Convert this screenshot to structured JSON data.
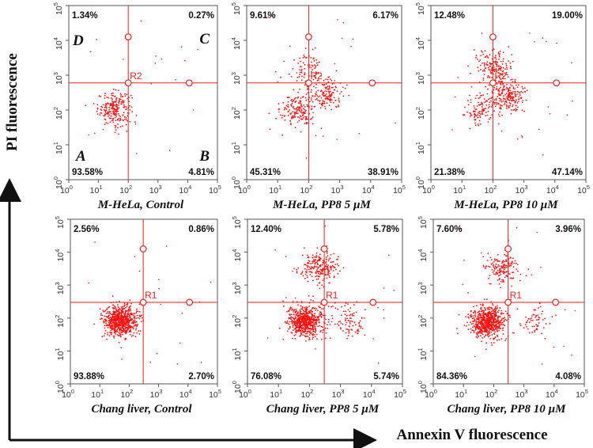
{
  "figure": {
    "y_axis_title": "PI fluorescence",
    "x_axis_title": "Annexin V fluorescence"
  },
  "colors": {
    "dots": "#ff1010",
    "gate": "#ff1a1a",
    "axis_arrow": "#111111"
  },
  "chart_data": [
    {
      "type": "scatter",
      "title": "M-HeLa, Control",
      "gate": "R2",
      "xlabel": "",
      "ylabel": "",
      "xscale": "log",
      "yscale": "log",
      "xlim": [
        1,
        100000
      ],
      "ylim": [
        1,
        100000
      ],
      "gate_x": 100,
      "gate_y": 600,
      "quadrant_percents": {
        "upper_left": "1.34%",
        "upper_right": "0.27%",
        "lower_left": "93.58%",
        "lower_right": "4.81%"
      },
      "quadrant_letters": {
        "upper_left": "D",
        "upper_right": "C",
        "lower_left": "A",
        "lower_right": "B"
      },
      "populations": [
        {
          "x": 35,
          "y": 110,
          "count": 230
        }
      ]
    },
    {
      "type": "scatter",
      "title": "M-HeLa, PP8 5 µM",
      "gate": "R2",
      "xlabel": "",
      "ylabel": "",
      "xscale": "log",
      "yscale": "log",
      "xlim": [
        1,
        100000
      ],
      "ylim": [
        1,
        100000
      ],
      "gate_x": 100,
      "gate_y": 600,
      "quadrant_percents": {
        "upper_left": "9.61%",
        "upper_right": "6.17%",
        "lower_left": "45.31%",
        "lower_right": "38.91%"
      },
      "populations": [
        {
          "x": 45,
          "y": 100,
          "count": 170
        },
        {
          "x": 350,
          "y": 300,
          "count": 150
        },
        {
          "x": 90,
          "y": 1500,
          "count": 80
        }
      ]
    },
    {
      "type": "scatter",
      "title": "M-HeLa, PP8 10 µM",
      "gate": "R2",
      "xlabel": "",
      "ylabel": "",
      "xscale": "log",
      "yscale": "log",
      "xlim": [
        1,
        100000
      ],
      "ylim": [
        1,
        100000
      ],
      "gate_x": 100,
      "gate_y": 600,
      "quadrant_percents": {
        "upper_left": "12.48%",
        "upper_right": "19.00%",
        "lower_left": "21.38%",
        "lower_right": "47.14%"
      },
      "populations": [
        {
          "x": 40,
          "y": 100,
          "count": 110
        },
        {
          "x": 300,
          "y": 250,
          "count": 230
        },
        {
          "x": 100,
          "y": 1800,
          "count": 160
        }
      ]
    },
    {
      "type": "scatter",
      "title": "Chang liver, Control",
      "gate": "R1",
      "xlabel": "",
      "ylabel": "",
      "xscale": "log",
      "yscale": "log",
      "xlim": [
        1,
        100000
      ],
      "ylim": [
        1,
        100000
      ],
      "gate_x": 300,
      "gate_y": 300,
      "quadrant_percents": {
        "upper_left": "2.56%",
        "upper_right": "0.86%",
        "lower_left": "93.88%",
        "lower_right": "2.70%"
      },
      "populations": [
        {
          "x": 50,
          "y": 80,
          "count": 700
        }
      ]
    },
    {
      "type": "scatter",
      "title": "Chang liver, PP8 5 µM",
      "gate": "R1",
      "xlabel": "",
      "ylabel": "",
      "xscale": "log",
      "yscale": "log",
      "xlim": [
        1,
        100000
      ],
      "ylim": [
        1,
        100000
      ],
      "gate_x": 300,
      "gate_y": 300,
      "quadrant_percents": {
        "upper_left": "12.40%",
        "upper_right": "5.78%",
        "lower_left": "76.08%",
        "lower_right": "5.74%"
      },
      "populations": [
        {
          "x": 70,
          "y": 80,
          "count": 650
        },
        {
          "x": 200,
          "y": 3500,
          "count": 220
        },
        {
          "x": 2000,
          "y": 80,
          "count": 90
        }
      ]
    },
    {
      "type": "scatter",
      "title": "Chang liver, PP8 10 µM",
      "gate": "R1",
      "xlabel": "",
      "ylabel": "",
      "xscale": "log",
      "yscale": "log",
      "xlim": [
        1,
        100000
      ],
      "ylim": [
        1,
        100000
      ],
      "gate_x": 300,
      "gate_y": 300,
      "quadrant_percents": {
        "upper_left": "7.60%",
        "upper_right": "3.96%",
        "lower_left": "84.36%",
        "lower_right": "4.08%"
      },
      "populations": [
        {
          "x": 60,
          "y": 80,
          "count": 650
        },
        {
          "x": 200,
          "y": 3500,
          "count": 160
        },
        {
          "x": 2000,
          "y": 80,
          "count": 60
        }
      ]
    }
  ]
}
